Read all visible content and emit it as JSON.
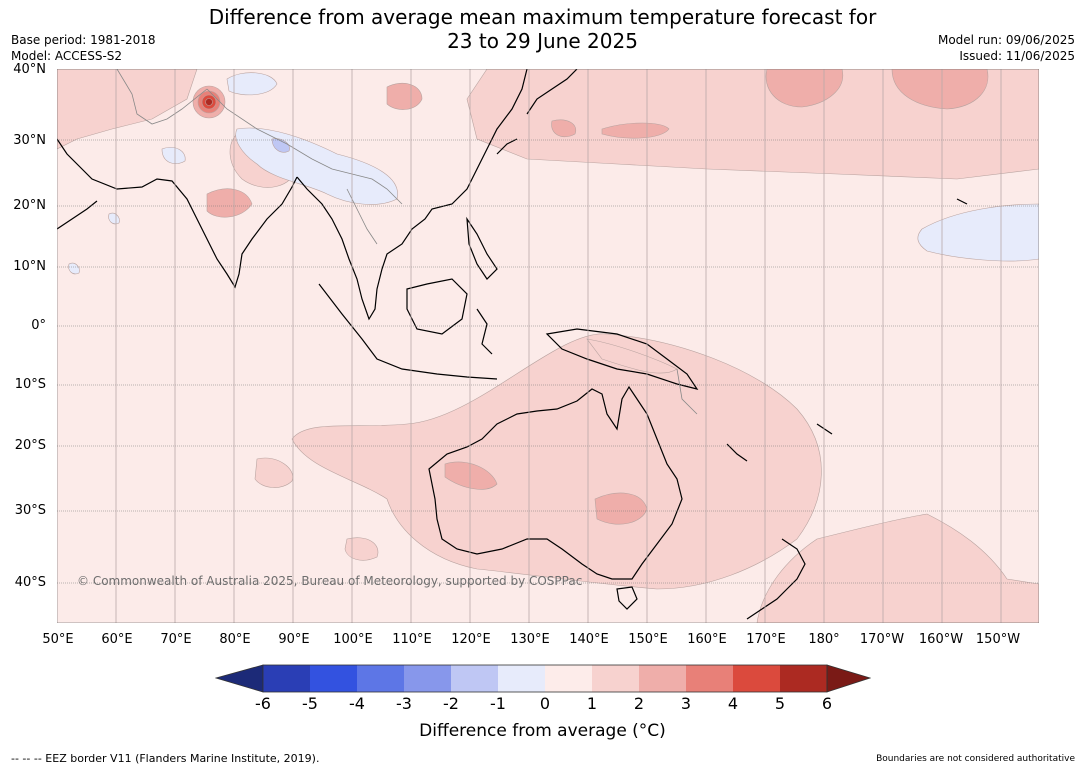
{
  "header": {
    "title_line1": "Difference from average mean maximum temperature forecast for",
    "title_line2": "23 to 29 June 2025",
    "base_period": "Base period: 1981-2018",
    "model": "Model: ACCESS-S2",
    "model_run": "Model run: 09/06/2025",
    "issued": "Issued: 11/06/2025"
  },
  "map": {
    "latitude_labels": [
      "40°N",
      "30°N",
      "20°N",
      "10°N",
      "0°",
      "10°S",
      "20°S",
      "30°S",
      "40°S"
    ],
    "longitude_labels": [
      "50°E",
      "60°E",
      "70°E",
      "80°E",
      "90°E",
      "100°E",
      "110°E",
      "120°E",
      "130°E",
      "140°E",
      "150°E",
      "160°E",
      "170°E",
      "180°",
      "170°W",
      "160°W",
      "150°W"
    ],
    "copyright": "© Commonwealth of Australia 2025, Bureau of Meteorology, supported by COSPPac"
  },
  "legend": {
    "ticks": [
      "-6",
      "-5",
      "-4",
      "-3",
      "-2",
      "-1",
      "0",
      "1",
      "2",
      "3",
      "4",
      "5",
      "6"
    ],
    "colors": [
      "#1c2a78",
      "#2a3eb5",
      "#3352e0",
      "#5d76e6",
      "#8797eb",
      "#bfc7f4",
      "#e7ebfb",
      "#fdecea",
      "#f7d2cf",
      "#efaeaa",
      "#e88078",
      "#db4a3d",
      "#ac2a22",
      "#7a1a16"
    ],
    "label": "Difference from average (°C)"
  },
  "footer": {
    "eez": "--  --  -- EEZ border V11 (Flanders Marine Institute, 2019).",
    "disclaimer": "Boundaries are not considered authoritative"
  }
}
